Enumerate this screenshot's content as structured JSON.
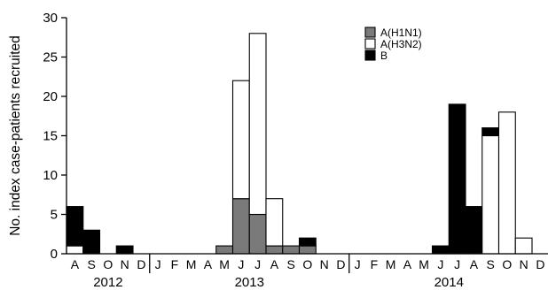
{
  "chart_data": {
    "type": "bar",
    "stacked": true,
    "ylabel": "No. index case-patients recruited",
    "ylim": [
      0,
      30
    ],
    "yticks": [
      0,
      5,
      10,
      15,
      20,
      25,
      30
    ],
    "months": [
      "A",
      "S",
      "O",
      "N",
      "D",
      "J",
      "F",
      "M",
      "A",
      "M",
      "J",
      "J",
      "A",
      "S",
      "O",
      "N",
      "D",
      "J",
      "F",
      "M",
      "A",
      "M",
      "J",
      "J",
      "A",
      "S",
      "O",
      "N",
      "D"
    ],
    "years": [
      {
        "label": "2012",
        "first_month_index": 0,
        "last_month_index": 4
      },
      {
        "label": "2013",
        "first_month_index": 5,
        "last_month_index": 16
      },
      {
        "label": "2014",
        "first_month_index": 17,
        "last_month_index": 28
      }
    ],
    "series": [
      {
        "name": "A(H1N1)",
        "color": "#7a7a7a",
        "values": [
          0,
          0,
          0,
          0,
          0,
          0,
          0,
          0,
          0,
          1,
          7,
          5,
          1,
          1,
          1,
          0,
          0,
          0,
          0,
          0,
          0,
          0,
          0,
          0,
          0,
          0,
          0,
          0,
          0
        ]
      },
      {
        "name": "A(H3N2)",
        "color": "#ffffff",
        "values": [
          1,
          0,
          0,
          0,
          0,
          0,
          0,
          0,
          0,
          0,
          15,
          23,
          6,
          0,
          0,
          0,
          0,
          0,
          0,
          0,
          0,
          0,
          0,
          0,
          0,
          15,
          18,
          2,
          0
        ]
      },
      {
        "name": "B",
        "color": "#000000",
        "values": [
          5,
          3,
          0,
          1,
          0,
          0,
          0,
          0,
          0,
          0,
          0,
          0,
          0,
          0,
          1,
          0,
          0,
          0,
          0,
          0,
          0,
          0,
          1,
          19,
          6,
          1,
          0,
          0,
          0
        ]
      }
    ],
    "legend": {
      "position": "top-right"
    },
    "grid": false
  }
}
